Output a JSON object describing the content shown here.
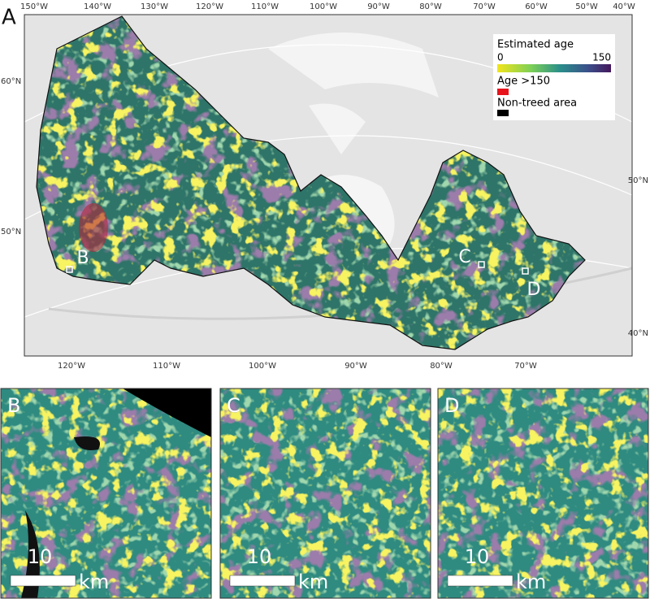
{
  "main": {
    "label": "A",
    "top_lon_labels": [
      "150°W",
      "140°W",
      "130°W",
      "120°W",
      "110°W",
      "100°W",
      "90°W",
      "80°W",
      "70°W",
      "60°W",
      "50°W",
      "40°W"
    ],
    "bottom_lon_labels": [
      "120°W",
      "110°W",
      "100°W",
      "90°W",
      "80°W",
      "70°W"
    ],
    "left_lat_labels": [
      "60°N",
      "50°N"
    ],
    "right_lat_labels": [
      "50°N",
      "40°N"
    ],
    "site_markers": [
      "B",
      "C",
      "D"
    ],
    "legend": {
      "title": "Estimated age",
      "scale_min": 0,
      "scale_max": 150,
      "over_label": "Age >150",
      "nontreed_label": "Non-treed area"
    }
  },
  "insets": [
    {
      "label": "B",
      "scale_value": "10",
      "scale_unit": "km"
    },
    {
      "label": "C",
      "scale_value": "10",
      "scale_unit": "km"
    },
    {
      "label": "D",
      "scale_value": "10",
      "scale_unit": "km"
    }
  ]
}
